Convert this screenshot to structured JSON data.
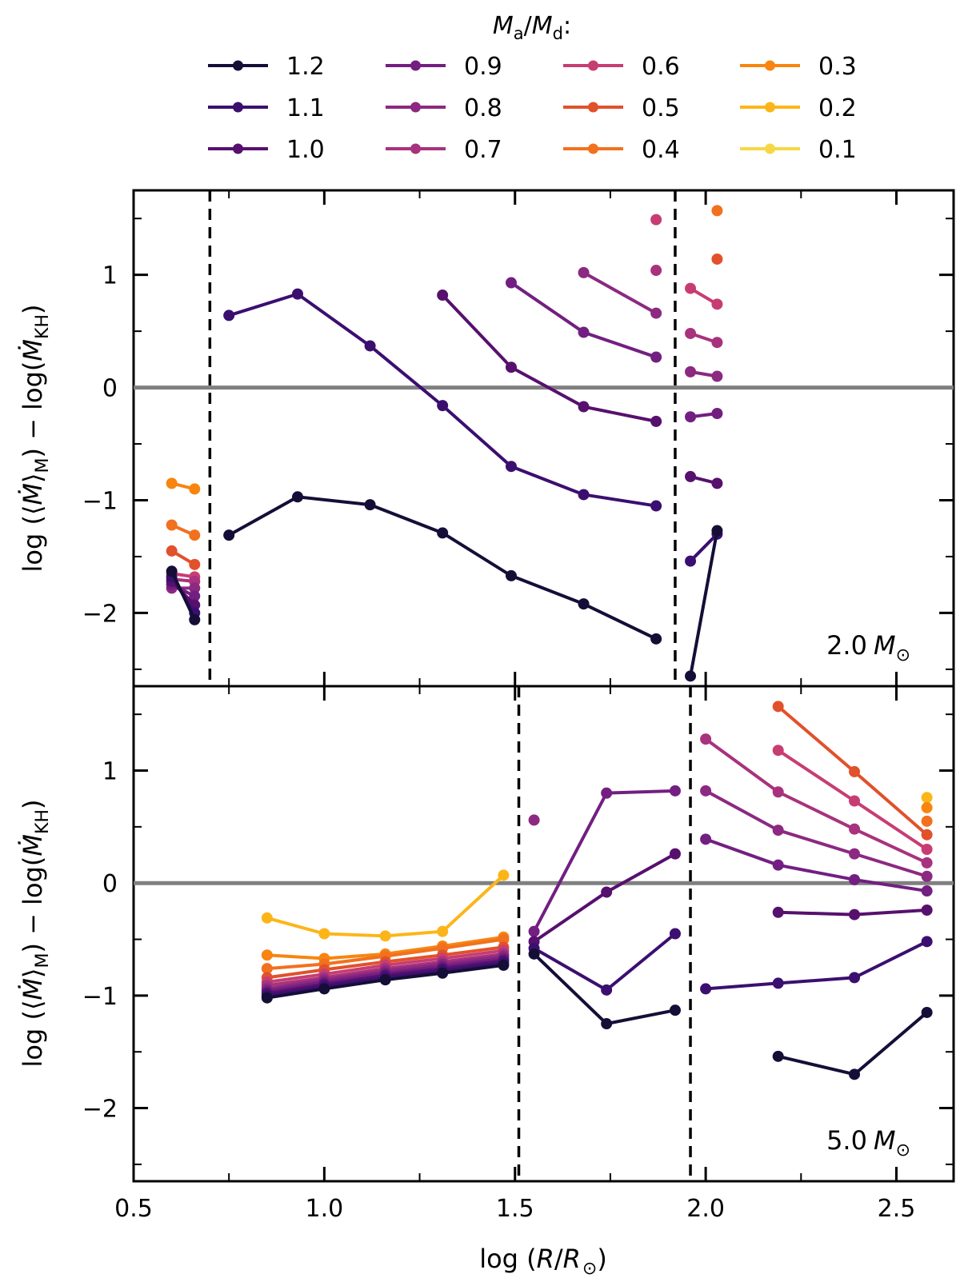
{
  "chart_data": {
    "type": "line",
    "legend": {
      "title_main": "M",
      "title_sub_a": "a",
      "title_slash": "/",
      "title_main2": "M",
      "title_sub_d": "d",
      "title_colon": ":",
      "position": "top",
      "entries": [
        {
          "label": "1.2",
          "color": "#150e37"
        },
        {
          "label": "1.1",
          "color": "#3b0f70"
        },
        {
          "label": "1.0",
          "color": "#57106e"
        },
        {
          "label": "0.9",
          "color": "#721f81"
        },
        {
          "label": "0.8",
          "color": "#8c2981"
        },
        {
          "label": "0.7",
          "color": "#a8327d"
        },
        {
          "label": "0.6",
          "color": "#c73d73"
        },
        {
          "label": "0.5",
          "color": "#e1512b"
        },
        {
          "label": "0.4",
          "color": "#f1711f"
        },
        {
          "label": "0.3",
          "color": "#f8850f"
        },
        {
          "label": "0.2",
          "color": "#fcb519"
        },
        {
          "label": "0.1",
          "color": "#f6d746"
        }
      ]
    },
    "xlabel": {
      "pre": "log (",
      "main": "R",
      "slash": "/",
      "main2": "R",
      "sub": "⊙",
      "post": ")"
    },
    "ylabel": {
      "pre": "log (⟨",
      "m1": "Ṁ",
      "mid": "⟩",
      "sub1": "M",
      "mid2": ") − log(",
      "m2": "Ṁ",
      "sub2": "KH",
      "post": ")"
    },
    "xlim": [
      0.5,
      2.65
    ],
    "ylim": [
      -2.65,
      1.75
    ],
    "xticks": [
      0.5,
      1.0,
      1.5,
      2.0,
      2.5
    ],
    "xtick_labels": [
      "0.5",
      "1.0",
      "1.5",
      "2.0",
      "2.5"
    ],
    "yticks": [
      -2,
      -1,
      0,
      1
    ],
    "ytick_labels": [
      "−2",
      "−1",
      "0",
      "1"
    ],
    "panels": [
      {
        "annotation": {
          "num": "2.0",
          "sym": "M",
          "sub": "⊙"
        },
        "vlines": [
          0.7,
          1.92
        ],
        "hline": 0,
        "series": [
          {
            "name": "1.2",
            "x": [
              0.6,
              0.66
            ],
            "y": [
              -1.63,
              -2.06
            ]
          },
          {
            "name": "1.2",
            "x": [
              0.75,
              0.93,
              1.12,
              1.31,
              1.49,
              1.68,
              1.87
            ],
            "y": [
              -1.31,
              -0.97,
              -1.04,
              -1.29,
              -1.67,
              -1.92,
              -2.23
            ]
          },
          {
            "name": "1.2",
            "x": [
              1.96,
              2.03
            ],
            "y": [
              -2.56,
              -1.27
            ]
          },
          {
            "name": "1.1",
            "x": [
              0.6,
              0.66
            ],
            "y": [
              -1.68,
              -2.0
            ]
          },
          {
            "name": "1.1",
            "x": [
              0.75,
              0.93,
              1.12,
              1.31,
              1.49,
              1.68,
              1.87
            ],
            "y": [
              0.64,
              0.83,
              0.37,
              -0.16,
              -0.7,
              -0.95,
              -1.05
            ]
          },
          {
            "name": "1.1",
            "x": [
              1.96,
              2.03
            ],
            "y": [
              -1.54,
              -1.3
            ]
          },
          {
            "name": "1.0",
            "x": [
              0.6,
              0.66
            ],
            "y": [
              -1.72,
              -1.93
            ]
          },
          {
            "name": "1.0",
            "x": [
              1.31,
              1.49,
              1.68,
              1.87
            ],
            "y": [
              0.82,
              0.18,
              -0.17,
              -0.3
            ]
          },
          {
            "name": "1.0",
            "x": [
              1.96,
              2.03
            ],
            "y": [
              -0.79,
              -0.85
            ]
          },
          {
            "name": "0.9",
            "x": [
              0.6,
              0.66
            ],
            "y": [
              -1.75,
              -1.85
            ]
          },
          {
            "name": "0.9",
            "x": [
              1.49,
              1.68,
              1.87
            ],
            "y": [
              0.93,
              0.49,
              0.27
            ]
          },
          {
            "name": "0.9",
            "x": [
              1.96,
              2.03
            ],
            "y": [
              -0.26,
              -0.23
            ]
          },
          {
            "name": "0.8",
            "x": [
              0.6,
              0.66
            ],
            "y": [
              -1.78,
              -1.78
            ]
          },
          {
            "name": "0.8",
            "x": [
              1.68,
              1.87
            ],
            "y": [
              1.02,
              0.66
            ]
          },
          {
            "name": "0.8",
            "x": [
              1.96,
              2.03
            ],
            "y": [
              0.14,
              0.1
            ]
          },
          {
            "name": "0.7",
            "x": [
              0.6,
              0.66
            ],
            "y": [
              -1.7,
              -1.72
            ]
          },
          {
            "name": "0.7",
            "x": [
              1.87
            ],
            "y": [
              1.04
            ]
          },
          {
            "name": "0.7",
            "x": [
              1.96,
              2.03
            ],
            "y": [
              0.48,
              0.4
            ]
          },
          {
            "name": "0.6",
            "x": [
              0.6,
              0.66
            ],
            "y": [
              -1.65,
              -1.68
            ]
          },
          {
            "name": "0.6",
            "x": [
              1.87
            ],
            "y": [
              1.49
            ]
          },
          {
            "name": "0.6",
            "x": [
              1.96,
              2.03
            ],
            "y": [
              0.88,
              0.74
            ]
          },
          {
            "name": "0.5",
            "x": [
              0.6,
              0.66
            ],
            "y": [
              -1.45,
              -1.57
            ]
          },
          {
            "name": "0.5",
            "x": [
              2.03
            ],
            "y": [
              1.14
            ]
          },
          {
            "name": "0.4",
            "x": [
              0.6,
              0.66
            ],
            "y": [
              -1.22,
              -1.31
            ]
          },
          {
            "name": "0.4",
            "x": [
              2.03
            ],
            "y": [
              1.57
            ]
          },
          {
            "name": "0.3",
            "x": [
              0.6,
              0.66
            ],
            "y": [
              -0.85,
              -0.9
            ]
          }
        ]
      },
      {
        "annotation": {
          "num": "5.0",
          "sym": "M",
          "sub": "⊙"
        },
        "vlines": [
          1.51,
          1.96
        ],
        "hline": 0,
        "series": [
          {
            "name": "1.2",
            "x": [
              0.85,
              1.0,
              1.16,
              1.31,
              1.47
            ],
            "y": [
              -1.02,
              -0.94,
              -0.86,
              -0.8,
              -0.73
            ]
          },
          {
            "name": "1.2",
            "x": [
              1.55,
              1.74,
              1.92
            ],
            "y": [
              -0.63,
              -1.25,
              -1.13
            ]
          },
          {
            "name": "1.2",
            "x": [
              2.19,
              2.39,
              2.58
            ],
            "y": [
              -1.54,
              -1.7,
              -1.15
            ]
          },
          {
            "name": "1.1",
            "x": [
              0.85,
              1.0,
              1.16,
              1.31,
              1.47
            ],
            "y": [
              -1.0,
              -0.92,
              -0.84,
              -0.78,
              -0.71
            ]
          },
          {
            "name": "1.1",
            "x": [
              1.55,
              1.74,
              1.92
            ],
            "y": [
              -0.58,
              -0.95,
              -0.45
            ]
          },
          {
            "name": "1.1",
            "x": [
              2.0,
              2.19,
              2.39,
              2.58
            ],
            "y": [
              -0.94,
              -0.89,
              -0.84,
              -0.52
            ]
          },
          {
            "name": "1.0",
            "x": [
              0.85,
              1.0,
              1.16,
              1.31,
              1.47
            ],
            "y": [
              -0.98,
              -0.9,
              -0.82,
              -0.76,
              -0.69
            ]
          },
          {
            "name": "1.0",
            "x": [
              1.55,
              1.74,
              1.92
            ],
            "y": [
              -0.52,
              -0.08,
              0.26
            ]
          },
          {
            "name": "1.0",
            "x": [
              2.19,
              2.39,
              2.58
            ],
            "y": [
              -0.26,
              -0.28,
              -0.24
            ]
          },
          {
            "name": "0.9",
            "x": [
              0.85,
              1.0,
              1.16,
              1.31,
              1.47
            ],
            "y": [
              -0.96,
              -0.88,
              -0.8,
              -0.74,
              -0.67
            ]
          },
          {
            "name": "0.9",
            "x": [
              1.55,
              1.74,
              1.92
            ],
            "y": [
              -0.43,
              0.8,
              0.82
            ]
          },
          {
            "name": "0.9",
            "x": [
              2.0,
              2.19,
              2.39,
              2.58
            ],
            "y": [
              0.39,
              0.16,
              0.03,
              -0.07
            ]
          },
          {
            "name": "0.8",
            "x": [
              0.85,
              1.0,
              1.16,
              1.31,
              1.47
            ],
            "y": [
              -0.94,
              -0.86,
              -0.78,
              -0.72,
              -0.65
            ]
          },
          {
            "name": "0.8",
            "x": [
              1.55
            ],
            "y": [
              0.56
            ]
          },
          {
            "name": "0.8",
            "x": [
              2.0,
              2.19,
              2.39,
              2.58
            ],
            "y": [
              0.82,
              0.47,
              0.26,
              0.06
            ]
          },
          {
            "name": "0.7",
            "x": [
              0.85,
              1.0,
              1.16,
              1.31,
              1.47
            ],
            "y": [
              -0.91,
              -0.84,
              -0.76,
              -0.7,
              -0.63
            ]
          },
          {
            "name": "0.7",
            "x": [
              2.0,
              2.19,
              2.39,
              2.58
            ],
            "y": [
              1.28,
              0.81,
              0.48,
              0.18
            ]
          },
          {
            "name": "0.6",
            "x": [
              0.85,
              1.0,
              1.16,
              1.31,
              1.47
            ],
            "y": [
              -0.88,
              -0.81,
              -0.73,
              -0.67,
              -0.6
            ]
          },
          {
            "name": "0.6",
            "x": [
              2.19,
              2.39,
              2.58
            ],
            "y": [
              1.18,
              0.73,
              0.3
            ]
          },
          {
            "name": "0.5",
            "x": [
              0.85,
              1.0,
              1.16,
              1.31,
              1.47
            ],
            "y": [
              -0.84,
              -0.77,
              -0.7,
              -0.64,
              -0.57
            ]
          },
          {
            "name": "0.5",
            "x": [
              2.19,
              2.39,
              2.58
            ],
            "y": [
              1.57,
              0.99,
              0.43
            ]
          },
          {
            "name": "0.4",
            "x": [
              0.85,
              1.0,
              1.16,
              1.31,
              1.47
            ],
            "y": [
              -0.76,
              -0.72,
              -0.65,
              -0.58,
              -0.5
            ]
          },
          {
            "name": "0.4",
            "x": [
              2.58
            ],
            "y": [
              0.55
            ]
          },
          {
            "name": "0.3",
            "x": [
              0.85,
              1.0,
              1.16,
              1.31,
              1.47
            ],
            "y": [
              -0.64,
              -0.67,
              -0.63,
              -0.56,
              -0.48
            ]
          },
          {
            "name": "0.3",
            "x": [
              2.58
            ],
            "y": [
              0.67
            ]
          },
          {
            "name": "0.2",
            "x": [
              0.85,
              1.0,
              1.16,
              1.31,
              1.47
            ],
            "y": [
              -0.31,
              -0.45,
              -0.47,
              -0.43,
              0.07
            ]
          },
          {
            "name": "0.2",
            "x": [
              2.58
            ],
            "y": [
              0.76
            ]
          }
        ]
      }
    ]
  }
}
